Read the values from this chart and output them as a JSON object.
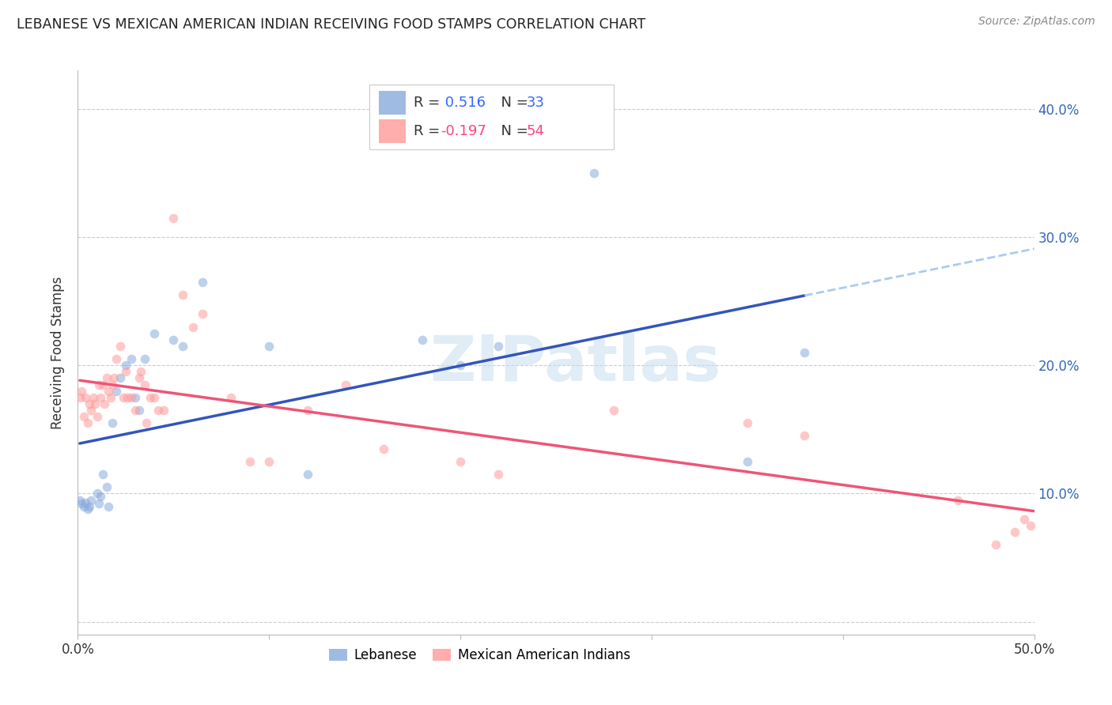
{
  "title": "LEBANESE VS MEXICAN AMERICAN INDIAN RECEIVING FOOD STAMPS CORRELATION CHART",
  "source": "Source: ZipAtlas.com",
  "ylabel": "Receiving Food Stamps",
  "xlim": [
    0.0,
    0.5
  ],
  "ylim": [
    -0.01,
    0.43
  ],
  "xticks": [
    0.0,
    0.1,
    0.2,
    0.3,
    0.4,
    0.5
  ],
  "xtick_labels": [
    "0.0%",
    "",
    "",
    "",
    "",
    "50.0%"
  ],
  "yticks": [
    0.0,
    0.1,
    0.2,
    0.3,
    0.4
  ],
  "ytick_labels_right": [
    "",
    "10.0%",
    "20.0%",
    "30.0%",
    "40.0%"
  ],
  "watermark": "ZIPatlas",
  "blue_color": "#88AADD",
  "pink_color": "#FF9999",
  "blue_line_color": "#3355BB",
  "pink_line_color": "#EE5577",
  "blue_dashed_color": "#AACCEE",
  "scatter_alpha": 0.55,
  "scatter_size": 70,
  "legend_R1": "R =  0.516",
  "legend_N1": "N = 33",
  "legend_R2": "R = -0.197",
  "legend_N2": "N = 54",
  "legend_R1_color": "#3366FF",
  "legend_N1_color": "#3366FF",
  "legend_R2_color": "#FF4477",
  "legend_N2_color": "#FF4477",
  "blue_x": [
    0.001,
    0.002,
    0.003,
    0.004,
    0.005,
    0.006,
    0.007,
    0.01,
    0.011,
    0.012,
    0.013,
    0.015,
    0.016,
    0.018,
    0.02,
    0.022,
    0.025,
    0.028,
    0.03,
    0.032,
    0.035,
    0.04,
    0.05,
    0.055,
    0.065,
    0.1,
    0.12,
    0.18,
    0.2,
    0.22,
    0.27,
    0.35,
    0.38
  ],
  "blue_y": [
    0.095,
    0.092,
    0.09,
    0.093,
    0.088,
    0.09,
    0.095,
    0.1,
    0.092,
    0.098,
    0.115,
    0.105,
    0.09,
    0.155,
    0.18,
    0.19,
    0.2,
    0.205,
    0.175,
    0.165,
    0.205,
    0.225,
    0.22,
    0.215,
    0.265,
    0.215,
    0.115,
    0.22,
    0.2,
    0.215,
    0.35,
    0.125,
    0.21
  ],
  "pink_x": [
    0.001,
    0.002,
    0.003,
    0.004,
    0.005,
    0.006,
    0.007,
    0.008,
    0.009,
    0.01,
    0.011,
    0.012,
    0.013,
    0.014,
    0.015,
    0.016,
    0.017,
    0.018,
    0.019,
    0.02,
    0.022,
    0.024,
    0.025,
    0.026,
    0.028,
    0.03,
    0.032,
    0.033,
    0.035,
    0.036,
    0.038,
    0.04,
    0.042,
    0.045,
    0.05,
    0.055,
    0.06,
    0.065,
    0.08,
    0.09,
    0.1,
    0.12,
    0.14,
    0.16,
    0.2,
    0.22,
    0.28,
    0.35,
    0.38,
    0.46,
    0.48,
    0.49,
    0.495,
    0.498
  ],
  "pink_y": [
    0.175,
    0.18,
    0.16,
    0.175,
    0.155,
    0.17,
    0.165,
    0.175,
    0.17,
    0.16,
    0.185,
    0.175,
    0.185,
    0.17,
    0.19,
    0.18,
    0.175,
    0.185,
    0.19,
    0.205,
    0.215,
    0.175,
    0.195,
    0.175,
    0.175,
    0.165,
    0.19,
    0.195,
    0.185,
    0.155,
    0.175,
    0.175,
    0.165,
    0.165,
    0.315,
    0.255,
    0.23,
    0.24,
    0.175,
    0.125,
    0.125,
    0.165,
    0.185,
    0.135,
    0.125,
    0.115,
    0.165,
    0.155,
    0.145,
    0.095,
    0.06,
    0.07,
    0.08,
    0.075
  ]
}
